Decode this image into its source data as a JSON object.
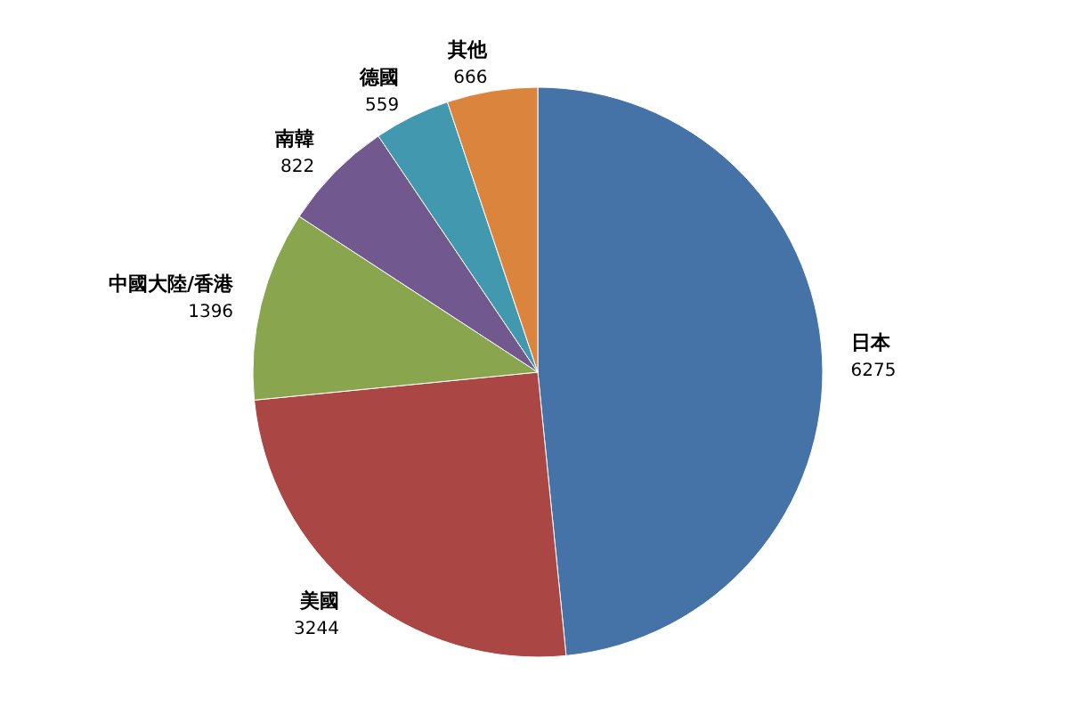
{
  "chart_data": {
    "type": "pie",
    "categories": [
      "日本",
      "美國",
      "中國大陸/香港",
      "南韓",
      "德國",
      "其他"
    ],
    "values": [
      6275,
      3244,
      1396,
      822,
      559,
      666
    ],
    "colors": [
      "#4572a7",
      "#aa4643",
      "#89a54e",
      "#71588f",
      "#4198af",
      "#db843d"
    ],
    "data_labels": true
  }
}
